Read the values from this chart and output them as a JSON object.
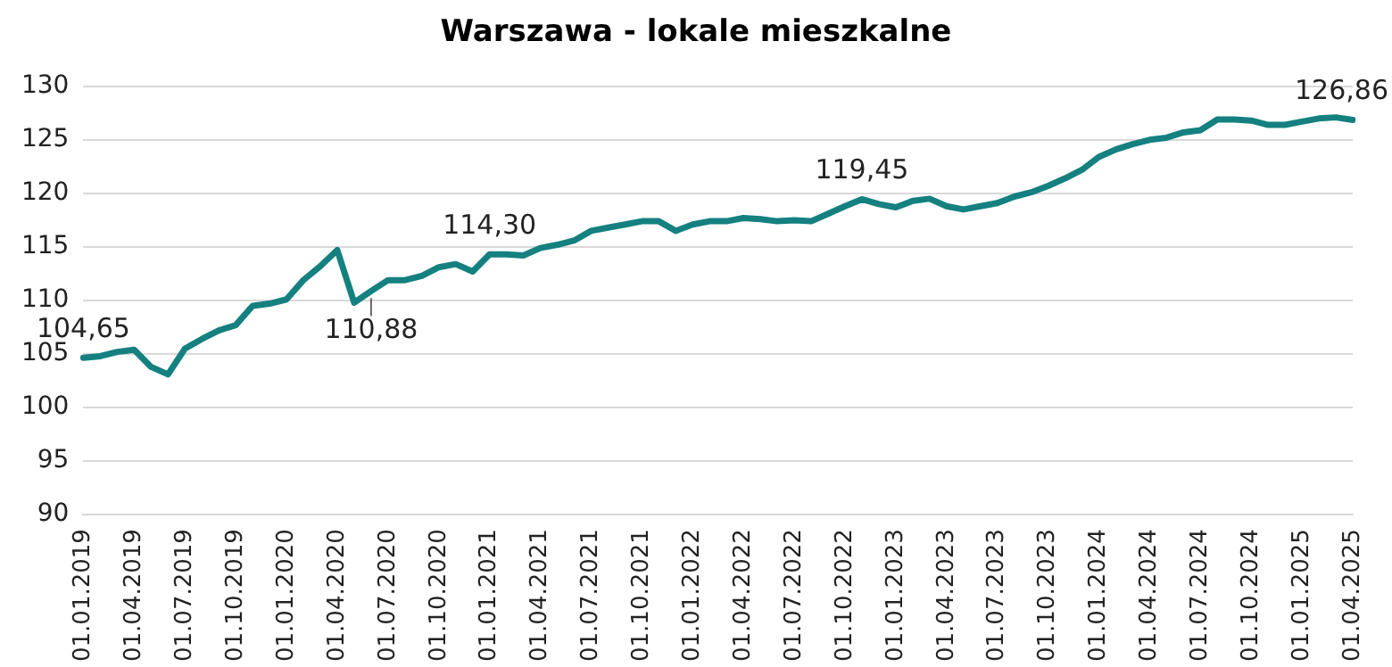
{
  "chart_data": {
    "type": "line",
    "title": "Warszawa - lokale mieszkalne",
    "categories": [
      "01.01.2019",
      null,
      null,
      "01.04.2019",
      null,
      null,
      "01.07.2019",
      null,
      null,
      "01.10.2019",
      null,
      null,
      "01.01.2020",
      null,
      null,
      "01.04.2020",
      null,
      null,
      "01.07.2020",
      null,
      null,
      "01.10.2020",
      null,
      null,
      "01.01.2021",
      null,
      null,
      "01.04.2021",
      null,
      null,
      "01.07.2021",
      null,
      null,
      "01.10.2021",
      null,
      null,
      "01.01.2022",
      null,
      null,
      "01.04.2022",
      null,
      null,
      "01.07.2022",
      null,
      null,
      "01.10.2022",
      null,
      null,
      "01.01.2023",
      null,
      null,
      "01.04.2023",
      null,
      null,
      "01.07.2023",
      null,
      null,
      "01.10.2023",
      null,
      null,
      "01.01.2024",
      null,
      null,
      "01.04.2024",
      null,
      null,
      "01.07.2024",
      null,
      null,
      "01.10.2024",
      null,
      null,
      "01.01.2025",
      null,
      null,
      "01.04.2025"
    ],
    "series": [
      {
        "color": "#158080",
        "values": [
          104.65,
          104.8,
          105.2,
          105.4,
          103.8,
          103.1,
          105.5,
          106.4,
          107.2,
          107.7,
          109.5,
          109.7,
          110.1,
          111.9,
          113.2,
          114.7,
          109.8,
          110.88,
          111.9,
          111.9,
          112.3,
          113.1,
          113.4,
          112.7,
          114.3,
          114.3,
          114.2,
          114.9,
          115.2,
          115.6,
          116.5,
          116.8,
          117.1,
          117.4,
          117.4,
          116.5,
          117.1,
          117.4,
          117.4,
          117.7,
          117.6,
          117.4,
          117.5,
          117.4,
          118.1,
          118.8,
          119.45,
          119.0,
          118.7,
          119.3,
          119.5,
          118.8,
          118.5,
          118.8,
          119.1,
          119.7,
          120.1,
          120.7,
          121.4,
          122.2,
          123.4,
          124.1,
          124.6,
          125.0,
          125.2,
          125.7,
          125.9,
          126.9,
          126.9,
          126.8,
          126.4,
          126.4,
          126.7,
          127.0,
          127.1,
          126.86
        ],
        "value_labels": [
          "104,65",
          null,
          null,
          null,
          null,
          null,
          null,
          null,
          null,
          null,
          null,
          null,
          null,
          null,
          null,
          null,
          null,
          "110,88",
          null,
          null,
          null,
          null,
          null,
          null,
          "114,30",
          null,
          null,
          null,
          null,
          null,
          null,
          null,
          null,
          null,
          null,
          null,
          null,
          null,
          null,
          null,
          null,
          null,
          null,
          null,
          null,
          null,
          "119,45",
          null,
          null,
          null,
          null,
          null,
          null,
          null,
          null,
          null,
          null,
          null,
          null,
          null,
          null,
          null,
          null,
          null,
          null,
          null,
          null,
          null,
          null,
          null,
          null,
          null,
          null,
          null,
          null,
          "126,86"
        ]
      }
    ],
    "ylim": [
      90,
      130
    ],
    "yticks": [
      90,
      95,
      100,
      105,
      110,
      115,
      120,
      125,
      130
    ],
    "grid": "y",
    "legend": false,
    "marker": "none",
    "line_style": "solid"
  }
}
